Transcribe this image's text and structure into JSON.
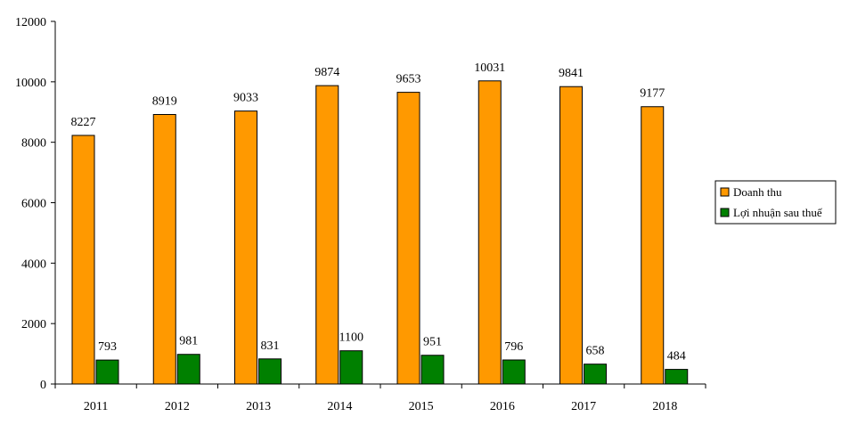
{
  "chart_data": {
    "type": "bar",
    "categories": [
      "2011",
      "2012",
      "2013",
      "2014",
      "2015",
      "2016",
      "2017",
      "2018"
    ],
    "series": [
      {
        "name": "Doanh thu",
        "color": "#FF9900",
        "values": [
          8227,
          8919,
          9033,
          9874,
          9653,
          10031,
          9841,
          9177
        ]
      },
      {
        "name": "Lợi nhuận sau thuế",
        "color": "#008000",
        "values": [
          793,
          981,
          831,
          1100,
          951,
          796,
          658,
          484
        ]
      }
    ],
    "title": "",
    "xlabel": "",
    "ylabel": "",
    "ylim": [
      0,
      12000
    ],
    "yticks": [
      0,
      2000,
      4000,
      6000,
      8000,
      10000,
      12000
    ],
    "grid": false,
    "legend": "right"
  }
}
